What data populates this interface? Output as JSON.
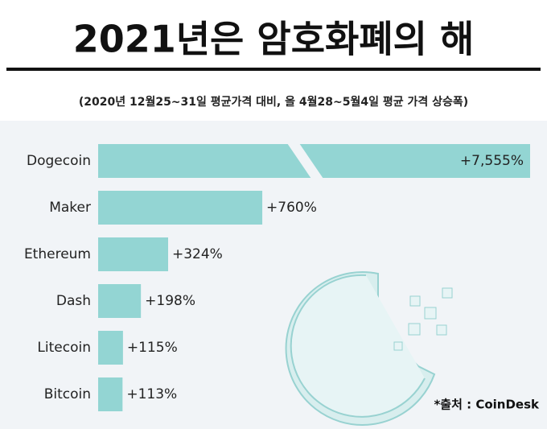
{
  "chart_data": {
    "type": "bar",
    "orientation": "horizontal",
    "title": "2021년은 암호화폐의 해",
    "subtitle": "(2020년 12월25~31일 평균가격 대비, 올 4월28~5월4일 평균 가격 상승폭)",
    "source": "*출처 : CoinDesk",
    "categories": [
      "Dogecoin",
      "Maker",
      "Ethereum",
      "Dash",
      "Litecoin",
      "Bitcoin"
    ],
    "values": [
      7555,
      760,
      324,
      198,
      115,
      113
    ],
    "value_labels": [
      "+7,555%",
      "+760%",
      "+324%",
      "+198%",
      "+115%",
      "+113%"
    ],
    "color": "#93d5d3"
  }
}
